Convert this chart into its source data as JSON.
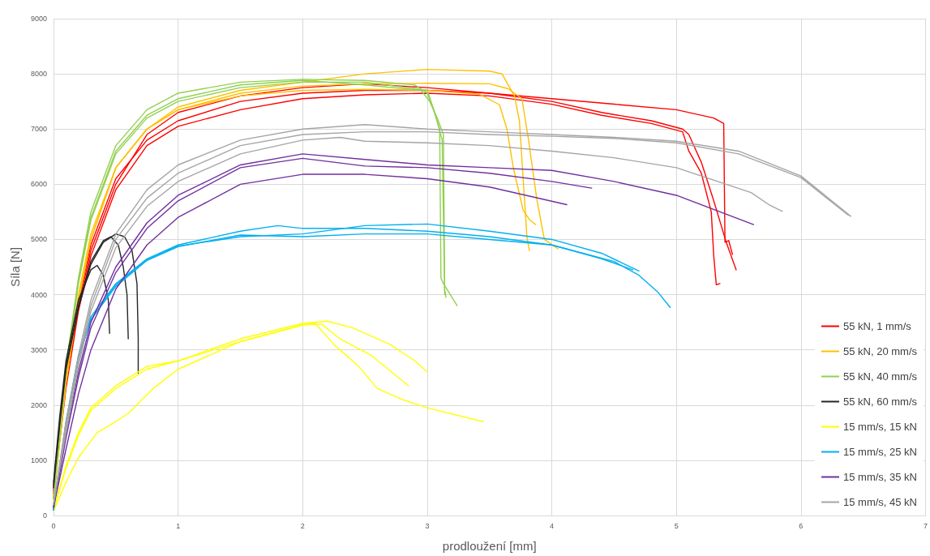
{
  "chart_data": {
    "type": "line",
    "xlabel": "prodloužení [mm]",
    "ylabel": "Síla [N]",
    "xlim": [
      0,
      7
    ],
    "xticks": [
      0,
      1,
      2,
      3,
      4,
      5,
      6,
      7
    ],
    "ylim": [
      0,
      9000
    ],
    "yticks": [
      0,
      1000,
      2000,
      3000,
      4000,
      5000,
      6000,
      7000,
      8000,
      9000
    ],
    "grid": true,
    "legend": "bottom right",
    "marker": "none",
    "line_style": "solid",
    "series": [
      {
        "name": "55 kN, 1 mm/s",
        "color": "#ff0000",
        "x": [
          0,
          0.1,
          0.2,
          0.3,
          0.5,
          0.75,
          1,
          1.5,
          2,
          2.5,
          3,
          3.5,
          4,
          4.5,
          5,
          5.3,
          5.38,
          5.39,
          5.42,
          5.45
        ],
        "values": [
          500,
          2500,
          3900,
          4900,
          6100,
          6800,
          7150,
          7500,
          7650,
          7700,
          7700,
          7650,
          7550,
          7450,
          7350,
          7200,
          7100,
          4950,
          4980,
          4730
        ]
      },
      {
        "color": "#ff0000",
        "x": [
          0,
          0.1,
          0.2,
          0.3,
          0.5,
          0.75,
          1,
          1.5,
          2,
          2.5,
          3,
          3.5,
          4,
          4.4,
          4.8,
          5.05,
          5.1,
          5.2,
          5.3,
          5.4,
          5.48
        ],
        "values": [
          450,
          2400,
          3800,
          4800,
          6000,
          6900,
          7300,
          7600,
          7750,
          7820,
          7750,
          7650,
          7500,
          7300,
          7150,
          7000,
          6900,
          6400,
          5700,
          4950,
          4450
        ]
      },
      {
        "color": "#ff0000",
        "x": [
          0,
          0.1,
          0.2,
          0.3,
          0.5,
          0.75,
          1,
          1.5,
          2,
          2.5,
          3,
          3.5,
          4,
          4.4,
          4.8,
          5.05,
          5.1,
          5.2,
          5.28,
          5.3,
          5.32,
          5.35
        ],
        "values": [
          400,
          2300,
          3700,
          4700,
          5900,
          6700,
          7050,
          7350,
          7550,
          7620,
          7650,
          7600,
          7450,
          7250,
          7100,
          6950,
          6600,
          6200,
          5500,
          4700,
          4180,
          4200
        ]
      },
      {
        "name": "55 kN, 20 mm/s",
        "color": "#ffc000",
        "x": [
          0,
          0.1,
          0.2,
          0.3,
          0.5,
          0.75,
          1,
          1.5,
          2,
          2.5,
          3,
          3.5,
          3.6,
          3.7,
          3.74,
          3.8,
          3.82
        ],
        "values": [
          350,
          2500,
          4000,
          5100,
          6300,
          7000,
          7400,
          7700,
          7850,
          8000,
          8080,
          8050,
          8000,
          7600,
          7150,
          5050,
          4800
        ]
      },
      {
        "color": "#ffc000",
        "x": [
          0,
          0.1,
          0.2,
          0.3,
          0.5,
          0.75,
          1,
          1.5,
          2,
          2.5,
          3,
          3.5,
          3.65,
          3.76,
          3.81,
          3.88,
          3.94,
          4.05
        ],
        "values": [
          300,
          2400,
          3900,
          5000,
          6300,
          7000,
          7350,
          7650,
          7780,
          7820,
          7830,
          7820,
          7730,
          7550,
          6850,
          5720,
          5000,
          4830
        ]
      },
      {
        "color": "#ffc000",
        "x": [
          0,
          0.1,
          0.2,
          0.3,
          0.5,
          0.75,
          1,
          1.5,
          2,
          2.5,
          3,
          3.42,
          3.58,
          3.64,
          3.69,
          3.77,
          3.82,
          3.87
        ],
        "values": [
          300,
          2400,
          3900,
          5000,
          6300,
          7000,
          7350,
          7600,
          7700,
          7720,
          7700,
          7630,
          7440,
          7000,
          6310,
          5530,
          5360,
          5270
        ]
      },
      {
        "name": "55 kN, 40 mm/s",
        "color": "#92d050",
        "x": [
          0,
          0.1,
          0.2,
          0.3,
          0.5,
          0.75,
          1,
          1.5,
          2,
          2.5,
          2.9,
          3,
          3.05,
          3.1,
          3.11,
          3.13,
          3.24
        ],
        "values": [
          300,
          2700,
          4300,
          5500,
          6700,
          7350,
          7650,
          7850,
          7900,
          7880,
          7800,
          7650,
          7350,
          7000,
          4300,
          4200,
          3800
        ]
      },
      {
        "color": "#92d050",
        "x": [
          0,
          0.1,
          0.2,
          0.3,
          0.5,
          0.75,
          1,
          1.5,
          2,
          2.5,
          2.95,
          3.02,
          3.08,
          3.13,
          3.14,
          3.15
        ],
        "values": [
          300,
          2650,
          4250,
          5400,
          6600,
          7250,
          7550,
          7800,
          7880,
          7800,
          7700,
          7500,
          7200,
          6900,
          4100,
          3950
        ]
      },
      {
        "color": "#92d050",
        "x": [
          0,
          0.1,
          0.2,
          0.3,
          0.5,
          0.75,
          1,
          1.5,
          2,
          2.5,
          3,
          3.06,
          3.12,
          3.14
        ],
        "values": [
          300,
          2600,
          4200,
          5350,
          6550,
          7200,
          7500,
          7750,
          7850,
          7850,
          7700,
          7300,
          6800,
          4000
        ]
      },
      {
        "name": "55 kN, 60 mm/s",
        "color": "#262626",
        "x": [
          0,
          0.05,
          0.1,
          0.2,
          0.3,
          0.35,
          0.4,
          0.44,
          0.45
        ],
        "values": [
          600,
          1800,
          2800,
          3900,
          4450,
          4530,
          4350,
          3900,
          3300
        ]
      },
      {
        "color": "#262626",
        "x": [
          0,
          0.05,
          0.1,
          0.2,
          0.3,
          0.4,
          0.46,
          0.52,
          0.56,
          0.59,
          0.6
        ],
        "values": [
          550,
          1700,
          2700,
          3800,
          4600,
          4980,
          5050,
          4900,
          4500,
          4000,
          3200
        ]
      },
      {
        "color": "#262626",
        "x": [
          0,
          0.05,
          0.1,
          0.2,
          0.3,
          0.4,
          0.5,
          0.57,
          0.63,
          0.67,
          0.68,
          0.68
        ],
        "values": [
          500,
          1650,
          2650,
          3750,
          4550,
          4950,
          5100,
          5050,
          4800,
          4200,
          3200,
          2580
        ]
      },
      {
        "name": "15 mm/s, 15 kN",
        "color": "#ffff00",
        "x": [
          0,
          0.1,
          0.2,
          0.3,
          0.5,
          0.75,
          1,
          1.5,
          2,
          2.2,
          2.4,
          2.7,
          2.9,
          3
        ],
        "values": [
          100,
          900,
          1500,
          1950,
          2350,
          2700,
          2800,
          3200,
          3480,
          3520,
          3400,
          3100,
          2800,
          2600
        ]
      },
      {
        "color": "#ffff00",
        "x": [
          0,
          0.1,
          0.2,
          0.3,
          0.5,
          0.75,
          1,
          1.5,
          2,
          2.15,
          2.3,
          2.55,
          2.85
        ],
        "values": [
          100,
          850,
          1450,
          1900,
          2300,
          2650,
          2800,
          3150,
          3450,
          3470,
          3200,
          2900,
          2350
        ]
      },
      {
        "color": "#ffff00",
        "x": [
          0,
          0.1,
          0.2,
          0.35,
          0.5,
          0.6,
          0.8,
          1,
          1.5,
          2,
          2.1,
          2.25,
          2.45,
          2.6,
          2.8,
          3,
          3.45
        ],
        "values": [
          80,
          600,
          1050,
          1500,
          1700,
          1850,
          2300,
          2650,
          3150,
          3450,
          3480,
          3100,
          2700,
          2300,
          2100,
          1950,
          1700
        ]
      },
      {
        "name": "15 mm/s, 25 kN",
        "color": "#00b0f0",
        "x": [
          0,
          0.1,
          0.2,
          0.3,
          0.5,
          0.75,
          1,
          1.5,
          1.8,
          2,
          2.5,
          3,
          3.5,
          4,
          4.5,
          4.7,
          4.85,
          4.95
        ],
        "values": [
          100,
          1700,
          2900,
          3600,
          4200,
          4650,
          4900,
          5150,
          5250,
          5200,
          5200,
          5150,
          5050,
          4900,
          4600,
          4350,
          4050,
          3770
        ]
      },
      {
        "color": "#00b0f0",
        "x": [
          0,
          0.1,
          0.2,
          0.3,
          0.5,
          0.75,
          1,
          1.5,
          2,
          2.5,
          3,
          3.5,
          4,
          4.4,
          4.7
        ],
        "values": [
          100,
          1650,
          2850,
          3550,
          4180,
          4630,
          4880,
          5050,
          5100,
          5250,
          5280,
          5150,
          5000,
          4750,
          4430
        ]
      },
      {
        "color": "#00b0f0",
        "x": [
          0,
          0.1,
          0.2,
          0.3,
          0.5,
          0.75,
          1,
          1.5,
          2,
          2.5,
          3,
          3.5,
          4,
          4.4,
          4.65
        ],
        "values": [
          100,
          1650,
          2850,
          3550,
          4150,
          4620,
          4870,
          5080,
          5050,
          5100,
          5100,
          5000,
          4900,
          4650,
          4450
        ]
      },
      {
        "name": "15 mm/s, 35 kN",
        "color": "#7030a0",
        "x": [
          0,
          0.1,
          0.2,
          0.3,
          0.5,
          0.75,
          1,
          1.5,
          2,
          2.5,
          3,
          3.5,
          4,
          4.5,
          5,
          5.62
        ],
        "values": [
          150,
          1500,
          2600,
          3500,
          4500,
          5300,
          5800,
          6350,
          6550,
          6450,
          6350,
          6300,
          6250,
          6050,
          5800,
          5270
        ]
      },
      {
        "color": "#7030a0",
        "x": [
          0,
          0.1,
          0.2,
          0.3,
          0.5,
          0.75,
          1,
          1.5,
          2,
          2.5,
          3,
          3.5,
          4,
          4.32
        ],
        "values": [
          150,
          1400,
          2500,
          3400,
          4400,
          5200,
          5700,
          6300,
          6470,
          6330,
          6300,
          6200,
          6050,
          5930
        ]
      },
      {
        "color": "#7030a0",
        "x": [
          0,
          0.1,
          0.2,
          0.3,
          0.5,
          0.75,
          1,
          1.5,
          2,
          2.5,
          3,
          3.5,
          4.12
        ],
        "values": [
          150,
          1200,
          2200,
          3000,
          4100,
          4900,
          5400,
          6000,
          6180,
          6180,
          6100,
          5950,
          5630
        ]
      },
      {
        "name": "15 mm/s, 45 kN",
        "color": "#a5a5a5",
        "x": [
          0,
          0.1,
          0.2,
          0.3,
          0.5,
          0.75,
          1,
          1.5,
          2,
          2.5,
          3,
          3.5,
          4,
          4.5,
          5,
          5.5,
          6,
          6.4
        ],
        "values": [
          200,
          1700,
          2900,
          3900,
          5100,
          5900,
          6350,
          6800,
          7000,
          7080,
          7000,
          6950,
          6900,
          6850,
          6780,
          6600,
          6150,
          5420
        ]
      },
      {
        "color": "#a5a5a5",
        "x": [
          0,
          0.1,
          0.2,
          0.3,
          0.5,
          0.75,
          1,
          1.5,
          2,
          2.5,
          3,
          3.5,
          4,
          4.5,
          5,
          5.5,
          6,
          6.38
        ],
        "values": [
          200,
          1600,
          2800,
          3800,
          5000,
          5750,
          6200,
          6700,
          6900,
          6950,
          6950,
          6900,
          6870,
          6830,
          6750,
          6550,
          6120,
          5440
        ]
      },
      {
        "color": "#a5a5a5",
        "x": [
          0,
          0.1,
          0.2,
          0.3,
          0.5,
          0.75,
          1,
          1.5,
          2,
          2.3,
          2.5,
          3,
          3.5,
          4,
          4.5,
          5,
          5.4,
          5.6,
          5.75,
          5.85
        ],
        "values": [
          200,
          1500,
          2700,
          3700,
          4850,
          5600,
          6050,
          6550,
          6800,
          6850,
          6780,
          6750,
          6700,
          6600,
          6480,
          6300,
          6000,
          5850,
          5620,
          5510
        ]
      }
    ]
  }
}
